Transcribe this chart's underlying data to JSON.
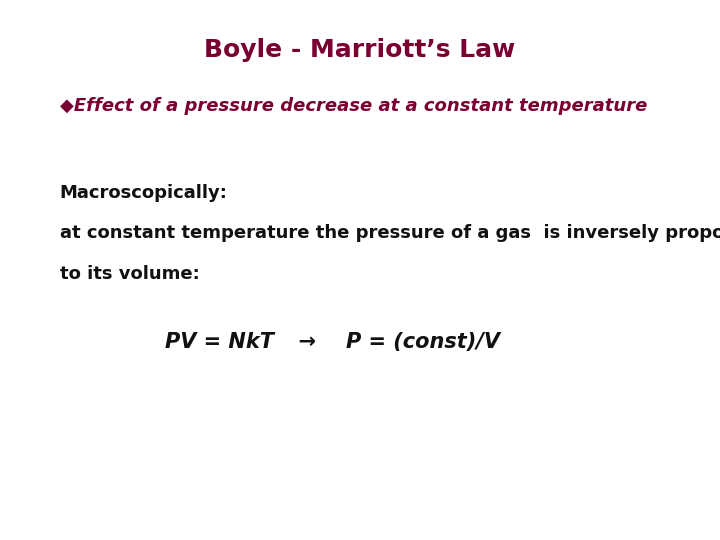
{
  "title": "Boyle - Marriott’s Law",
  "title_color": "#7B0032",
  "title_fontsize": 18,
  "subtitle_bullet": "◆",
  "subtitle": "Effect of a pressure decrease at a constant temperature",
  "subtitle_color": "#7B0032",
  "subtitle_fontsize": 13,
  "macro_label": "Macroscopically:",
  "macro_text1": "at constant temperature the pressure of a gas  is inversely proportional",
  "macro_text2": "to its volume:",
  "body_color": "#111111",
  "body_fontsize": 13,
  "equation_bold_italic": "PV = NkT",
  "equation_arrow": "  →  ",
  "equation_italic": "P = (const)/V",
  "eq_fontsize": 15,
  "background_color": "#ffffff"
}
